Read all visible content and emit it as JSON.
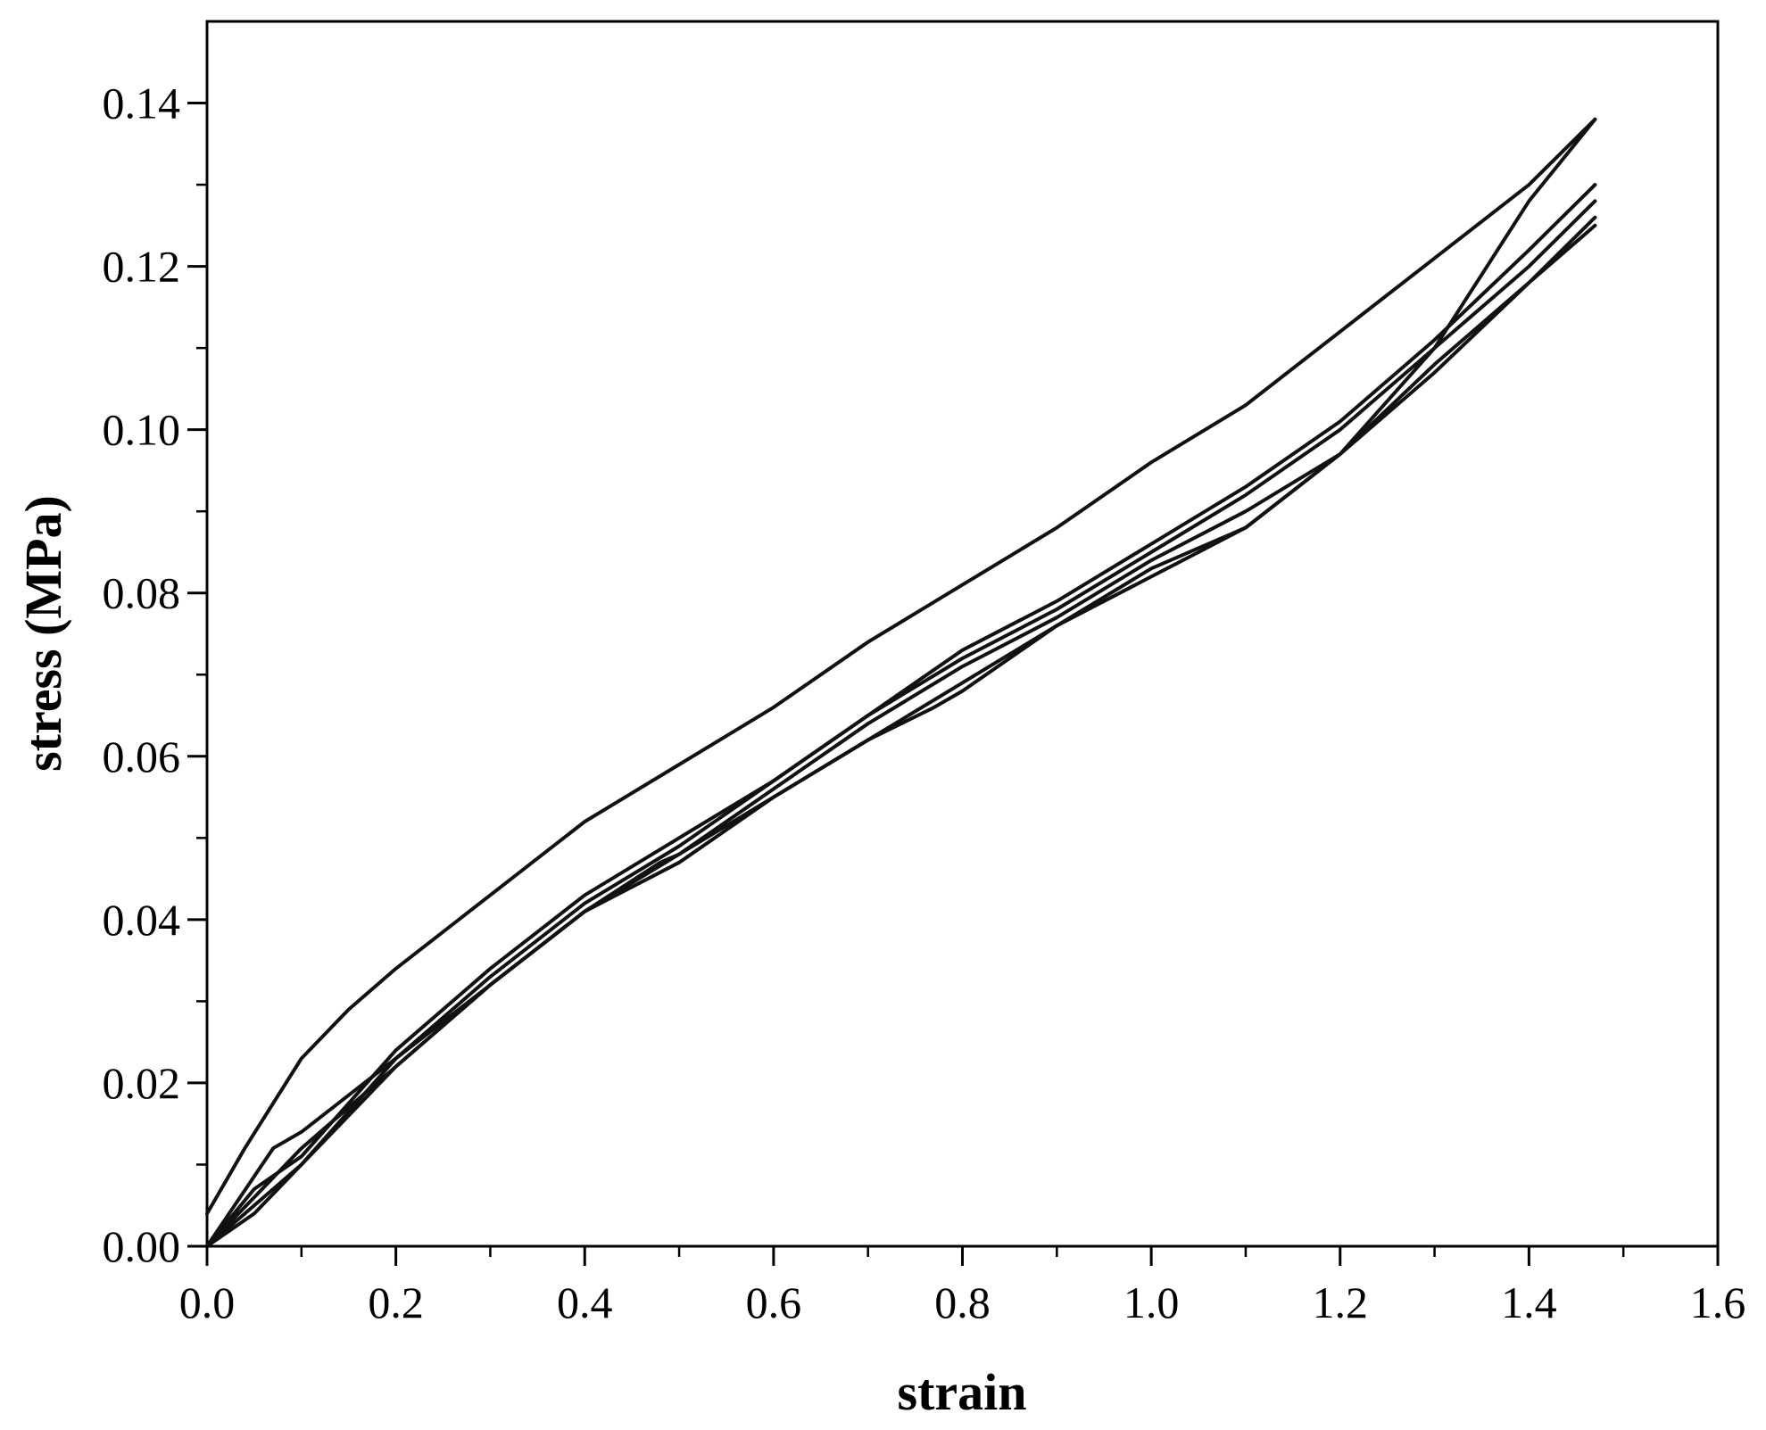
{
  "chart_data": {
    "type": "line",
    "title": "",
    "xlabel": "strain",
    "ylabel": "stress (MPa)",
    "xlim": [
      0.0,
      1.6
    ],
    "ylim": [
      0.0,
      0.15
    ],
    "x_ticks": [
      "0.0",
      "0.2",
      "0.4",
      "0.6",
      "0.8",
      "1.0",
      "1.2",
      "1.4",
      "1.6"
    ],
    "x_tick_values": [
      0.0,
      0.2,
      0.4,
      0.6,
      0.8,
      1.0,
      1.2,
      1.4,
      1.6
    ],
    "y_ticks": [
      "0.00",
      "0.02",
      "0.04",
      "0.06",
      "0.08",
      "0.10",
      "0.12",
      "0.14"
    ],
    "y_tick_values": [
      0.0,
      0.02,
      0.04,
      0.06,
      0.08,
      0.1,
      0.12,
      0.14
    ],
    "grid": false,
    "legend": "none",
    "line_color": "#111111",
    "series": [
      {
        "x": [
          0.0,
          0.04,
          0.1,
          0.15,
          0.2,
          0.3,
          0.4,
          0.5,
          0.6,
          0.7,
          0.8,
          0.9,
          1.0,
          1.1,
          1.2,
          1.3,
          1.4,
          1.47
        ],
        "y": [
          0.004,
          0.012,
          0.023,
          0.029,
          0.034,
          0.043,
          0.052,
          0.059,
          0.066,
          0.074,
          0.081,
          0.088,
          0.096,
          0.103,
          0.112,
          0.121,
          0.13,
          0.138
        ]
      },
      {
        "x": [
          0.0,
          0.1,
          0.2,
          0.3,
          0.4,
          0.5,
          0.6,
          0.7,
          0.8,
          0.9,
          1.0,
          1.1,
          1.2,
          1.3,
          1.4,
          1.47
        ],
        "y": [
          0.0,
          0.01,
          0.022,
          0.032,
          0.041,
          0.048,
          0.056,
          0.064,
          0.071,
          0.077,
          0.084,
          0.09,
          0.097,
          0.11,
          0.128,
          0.138
        ]
      },
      {
        "x": [
          0.0,
          0.05,
          0.1,
          0.2,
          0.3,
          0.4,
          0.5,
          0.6,
          0.7,
          0.8,
          0.9,
          1.0,
          1.1,
          1.2,
          1.3,
          1.4,
          1.47
        ],
        "y": [
          0.0,
          0.007,
          0.011,
          0.024,
          0.034,
          0.043,
          0.05,
          0.057,
          0.065,
          0.073,
          0.079,
          0.086,
          0.093,
          0.101,
          0.111,
          0.122,
          0.13
        ]
      },
      {
        "x": [
          0.0,
          0.07,
          0.1,
          0.2,
          0.3,
          0.4,
          0.5,
          0.6,
          0.7,
          0.8,
          0.9,
          1.0,
          1.1,
          1.2,
          1.3,
          1.4,
          1.47
        ],
        "y": [
          0.0,
          0.012,
          0.014,
          0.023,
          0.033,
          0.042,
          0.049,
          0.057,
          0.065,
          0.072,
          0.078,
          0.085,
          0.092,
          0.1,
          0.11,
          0.12,
          0.128
        ]
      },
      {
        "x": [
          0.0,
          0.05,
          0.1,
          0.2,
          0.3,
          0.4,
          0.5,
          0.6,
          0.7,
          0.77,
          0.8,
          0.9,
          1.0,
          1.05,
          1.1,
          1.2,
          1.3,
          1.4,
          1.47
        ],
        "y": [
          0.0,
          0.006,
          0.012,
          0.022,
          0.032,
          0.041,
          0.047,
          0.055,
          0.062,
          0.066,
          0.068,
          0.076,
          0.082,
          0.085,
          0.088,
          0.097,
          0.107,
          0.118,
          0.126
        ]
      },
      {
        "x": [
          0.0,
          0.05,
          0.1,
          0.2,
          0.3,
          0.4,
          0.48,
          0.5,
          0.6,
          0.7,
          0.8,
          0.9,
          1.0,
          1.08,
          1.1,
          1.2,
          1.3,
          1.4,
          1.47
        ],
        "y": [
          0.0,
          0.004,
          0.01,
          0.023,
          0.032,
          0.041,
          0.047,
          0.048,
          0.055,
          0.062,
          0.069,
          0.076,
          0.083,
          0.087,
          0.088,
          0.097,
          0.108,
          0.118,
          0.125
        ]
      }
    ]
  }
}
